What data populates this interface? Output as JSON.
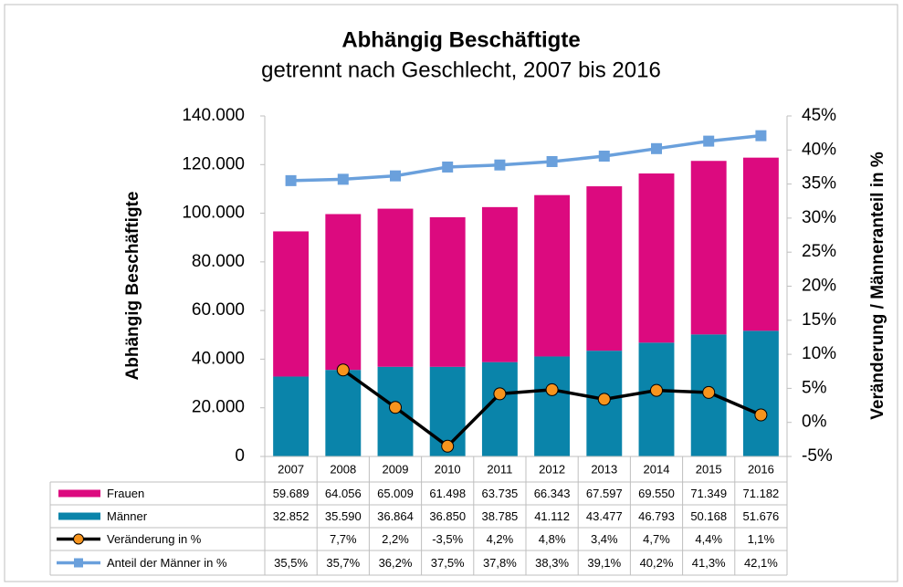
{
  "chart_data": {
    "type": "bar",
    "title": "Abhängig Beschäftigte",
    "subtitle": "getrennt nach Geschlecht, 2007 bis 2016",
    "ylabel": "Abhängig Beschäftigte",
    "y2label": "Veränderung / Männeranteil in %",
    "categories": [
      "2007",
      "2008",
      "2009",
      "2010",
      "2011",
      "2012",
      "2013",
      "2014",
      "2015",
      "2016"
    ],
    "series": [
      {
        "name": "Frauen",
        "color": "#dc0a7f",
        "stacked": true,
        "values": [
          59689,
          64056,
          65009,
          61498,
          63735,
          66343,
          67597,
          69550,
          71349,
          71182
        ],
        "value_labels": [
          "59.689",
          "64.056",
          "65.009",
          "61.498",
          "63.735",
          "66.343",
          "67.597",
          "69.550",
          "71.349",
          "71.182"
        ]
      },
      {
        "name": "Männer",
        "color": "#0a84aa",
        "stacked": true,
        "values": [
          32852,
          35590,
          36864,
          36850,
          38785,
          41112,
          43477,
          46793,
          50168,
          51676
        ],
        "value_labels": [
          "32.852",
          "35.590",
          "36.864",
          "36.850",
          "38.785",
          "41.112",
          "43.477",
          "46.793",
          "50.168",
          "51.676"
        ]
      },
      {
        "name": "Veränderung in %",
        "type": "line",
        "axis": "y2",
        "color": "#000000",
        "marker": "circle",
        "marker_color": "#f7941d",
        "values": [
          null,
          7.7,
          2.2,
          -3.5,
          4.2,
          4.8,
          3.4,
          4.7,
          4.4,
          1.1
        ],
        "value_labels": [
          null,
          "7,7%",
          "2,2%",
          "-3,5%",
          "4,2%",
          "4,8%",
          "3,4%",
          "4,7%",
          "4,4%",
          "1,1%"
        ]
      },
      {
        "name": "Anteil der Männer in %",
        "type": "line",
        "axis": "y2",
        "color": "#6aa0dc",
        "marker": "square",
        "marker_color": "#6aa0dc",
        "values": [
          35.5,
          35.7,
          36.2,
          37.5,
          37.8,
          38.3,
          39.1,
          40.2,
          41.3,
          42.1
        ],
        "value_labels": [
          "35,5%",
          "35,7%",
          "36,2%",
          "37,5%",
          "37,8%",
          "38,3%",
          "39,1%",
          "40,2%",
          "41,3%",
          "42,1%"
        ]
      }
    ],
    "ylim": [
      0,
      140000
    ],
    "yticks": [
      0,
      {
        "value": 20000,
        "label": "20.000"
      },
      {
        "value": 40000,
        "label": "40.000"
      },
      {
        "value": 60000,
        "label": "60.000"
      },
      {
        "value": 80000,
        "label": "80.000"
      },
      {
        "value": 100000,
        "label": "100.000"
      },
      {
        "value": 120000,
        "label": "120.000"
      },
      {
        "value": 140000,
        "label": "140.000"
      }
    ],
    "y2lim": [
      -5,
      45
    ],
    "y2ticks": [
      {
        "value": -5,
        "label": "-5%"
      },
      {
        "value": 0,
        "label": "0%"
      },
      {
        "value": 5,
        "label": "5%"
      },
      {
        "value": 10,
        "label": "10%"
      },
      {
        "value": 15,
        "label": "15%"
      },
      {
        "value": 20,
        "label": "20%"
      },
      {
        "value": 25,
        "label": "25%"
      },
      {
        "value": 30,
        "label": "30%"
      },
      {
        "value": 35,
        "label": "35%"
      },
      {
        "value": 40,
        "label": "40%"
      },
      {
        "value": 45,
        "label": "45%"
      }
    ],
    "data_table": true
  }
}
